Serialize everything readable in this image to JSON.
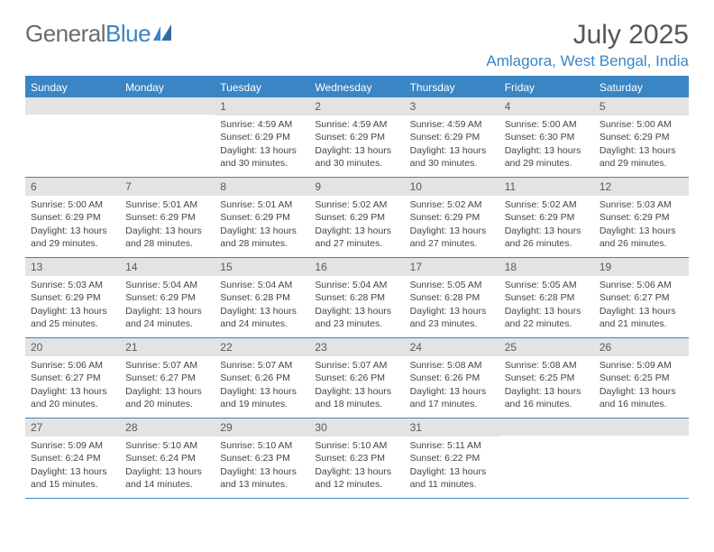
{
  "logo": {
    "text1": "General",
    "text2": "Blue"
  },
  "title": "July 2025",
  "location": "Amlagora, West Bengal, India",
  "colors": {
    "accent": "#3a85c4",
    "header_text": "#ffffff",
    "daynum_bg": "#e3e3e3",
    "text": "#444444",
    "logo_gray": "#6b6b6b"
  },
  "day_names": [
    "Sunday",
    "Monday",
    "Tuesday",
    "Wednesday",
    "Thursday",
    "Friday",
    "Saturday"
  ],
  "weeks": [
    [
      null,
      null,
      {
        "n": "1",
        "sunrise": "Sunrise: 4:59 AM",
        "sunset": "Sunset: 6:29 PM",
        "d1": "Daylight: 13 hours",
        "d2": "and 30 minutes."
      },
      {
        "n": "2",
        "sunrise": "Sunrise: 4:59 AM",
        "sunset": "Sunset: 6:29 PM",
        "d1": "Daylight: 13 hours",
        "d2": "and 30 minutes."
      },
      {
        "n": "3",
        "sunrise": "Sunrise: 4:59 AM",
        "sunset": "Sunset: 6:29 PM",
        "d1": "Daylight: 13 hours",
        "d2": "and 30 minutes."
      },
      {
        "n": "4",
        "sunrise": "Sunrise: 5:00 AM",
        "sunset": "Sunset: 6:30 PM",
        "d1": "Daylight: 13 hours",
        "d2": "and 29 minutes."
      },
      {
        "n": "5",
        "sunrise": "Sunrise: 5:00 AM",
        "sunset": "Sunset: 6:29 PM",
        "d1": "Daylight: 13 hours",
        "d2": "and 29 minutes."
      }
    ],
    [
      {
        "n": "6",
        "sunrise": "Sunrise: 5:00 AM",
        "sunset": "Sunset: 6:29 PM",
        "d1": "Daylight: 13 hours",
        "d2": "and 29 minutes."
      },
      {
        "n": "7",
        "sunrise": "Sunrise: 5:01 AM",
        "sunset": "Sunset: 6:29 PM",
        "d1": "Daylight: 13 hours",
        "d2": "and 28 minutes."
      },
      {
        "n": "8",
        "sunrise": "Sunrise: 5:01 AM",
        "sunset": "Sunset: 6:29 PM",
        "d1": "Daylight: 13 hours",
        "d2": "and 28 minutes."
      },
      {
        "n": "9",
        "sunrise": "Sunrise: 5:02 AM",
        "sunset": "Sunset: 6:29 PM",
        "d1": "Daylight: 13 hours",
        "d2": "and 27 minutes."
      },
      {
        "n": "10",
        "sunrise": "Sunrise: 5:02 AM",
        "sunset": "Sunset: 6:29 PM",
        "d1": "Daylight: 13 hours",
        "d2": "and 27 minutes."
      },
      {
        "n": "11",
        "sunrise": "Sunrise: 5:02 AM",
        "sunset": "Sunset: 6:29 PM",
        "d1": "Daylight: 13 hours",
        "d2": "and 26 minutes."
      },
      {
        "n": "12",
        "sunrise": "Sunrise: 5:03 AM",
        "sunset": "Sunset: 6:29 PM",
        "d1": "Daylight: 13 hours",
        "d2": "and 26 minutes."
      }
    ],
    [
      {
        "n": "13",
        "sunrise": "Sunrise: 5:03 AM",
        "sunset": "Sunset: 6:29 PM",
        "d1": "Daylight: 13 hours",
        "d2": "and 25 minutes."
      },
      {
        "n": "14",
        "sunrise": "Sunrise: 5:04 AM",
        "sunset": "Sunset: 6:29 PM",
        "d1": "Daylight: 13 hours",
        "d2": "and 24 minutes."
      },
      {
        "n": "15",
        "sunrise": "Sunrise: 5:04 AM",
        "sunset": "Sunset: 6:28 PM",
        "d1": "Daylight: 13 hours",
        "d2": "and 24 minutes."
      },
      {
        "n": "16",
        "sunrise": "Sunrise: 5:04 AM",
        "sunset": "Sunset: 6:28 PM",
        "d1": "Daylight: 13 hours",
        "d2": "and 23 minutes."
      },
      {
        "n": "17",
        "sunrise": "Sunrise: 5:05 AM",
        "sunset": "Sunset: 6:28 PM",
        "d1": "Daylight: 13 hours",
        "d2": "and 23 minutes."
      },
      {
        "n": "18",
        "sunrise": "Sunrise: 5:05 AM",
        "sunset": "Sunset: 6:28 PM",
        "d1": "Daylight: 13 hours",
        "d2": "and 22 minutes."
      },
      {
        "n": "19",
        "sunrise": "Sunrise: 5:06 AM",
        "sunset": "Sunset: 6:27 PM",
        "d1": "Daylight: 13 hours",
        "d2": "and 21 minutes."
      }
    ],
    [
      {
        "n": "20",
        "sunrise": "Sunrise: 5:06 AM",
        "sunset": "Sunset: 6:27 PM",
        "d1": "Daylight: 13 hours",
        "d2": "and 20 minutes."
      },
      {
        "n": "21",
        "sunrise": "Sunrise: 5:07 AM",
        "sunset": "Sunset: 6:27 PM",
        "d1": "Daylight: 13 hours",
        "d2": "and 20 minutes."
      },
      {
        "n": "22",
        "sunrise": "Sunrise: 5:07 AM",
        "sunset": "Sunset: 6:26 PM",
        "d1": "Daylight: 13 hours",
        "d2": "and 19 minutes."
      },
      {
        "n": "23",
        "sunrise": "Sunrise: 5:07 AM",
        "sunset": "Sunset: 6:26 PM",
        "d1": "Daylight: 13 hours",
        "d2": "and 18 minutes."
      },
      {
        "n": "24",
        "sunrise": "Sunrise: 5:08 AM",
        "sunset": "Sunset: 6:26 PM",
        "d1": "Daylight: 13 hours",
        "d2": "and 17 minutes."
      },
      {
        "n": "25",
        "sunrise": "Sunrise: 5:08 AM",
        "sunset": "Sunset: 6:25 PM",
        "d1": "Daylight: 13 hours",
        "d2": "and 16 minutes."
      },
      {
        "n": "26",
        "sunrise": "Sunrise: 5:09 AM",
        "sunset": "Sunset: 6:25 PM",
        "d1": "Daylight: 13 hours",
        "d2": "and 16 minutes."
      }
    ],
    [
      {
        "n": "27",
        "sunrise": "Sunrise: 5:09 AM",
        "sunset": "Sunset: 6:24 PM",
        "d1": "Daylight: 13 hours",
        "d2": "and 15 minutes."
      },
      {
        "n": "28",
        "sunrise": "Sunrise: 5:10 AM",
        "sunset": "Sunset: 6:24 PM",
        "d1": "Daylight: 13 hours",
        "d2": "and 14 minutes."
      },
      {
        "n": "29",
        "sunrise": "Sunrise: 5:10 AM",
        "sunset": "Sunset: 6:23 PM",
        "d1": "Daylight: 13 hours",
        "d2": "and 13 minutes."
      },
      {
        "n": "30",
        "sunrise": "Sunrise: 5:10 AM",
        "sunset": "Sunset: 6:23 PM",
        "d1": "Daylight: 13 hours",
        "d2": "and 12 minutes."
      },
      {
        "n": "31",
        "sunrise": "Sunrise: 5:11 AM",
        "sunset": "Sunset: 6:22 PM",
        "d1": "Daylight: 13 hours",
        "d2": "and 11 minutes."
      },
      null,
      null
    ]
  ]
}
